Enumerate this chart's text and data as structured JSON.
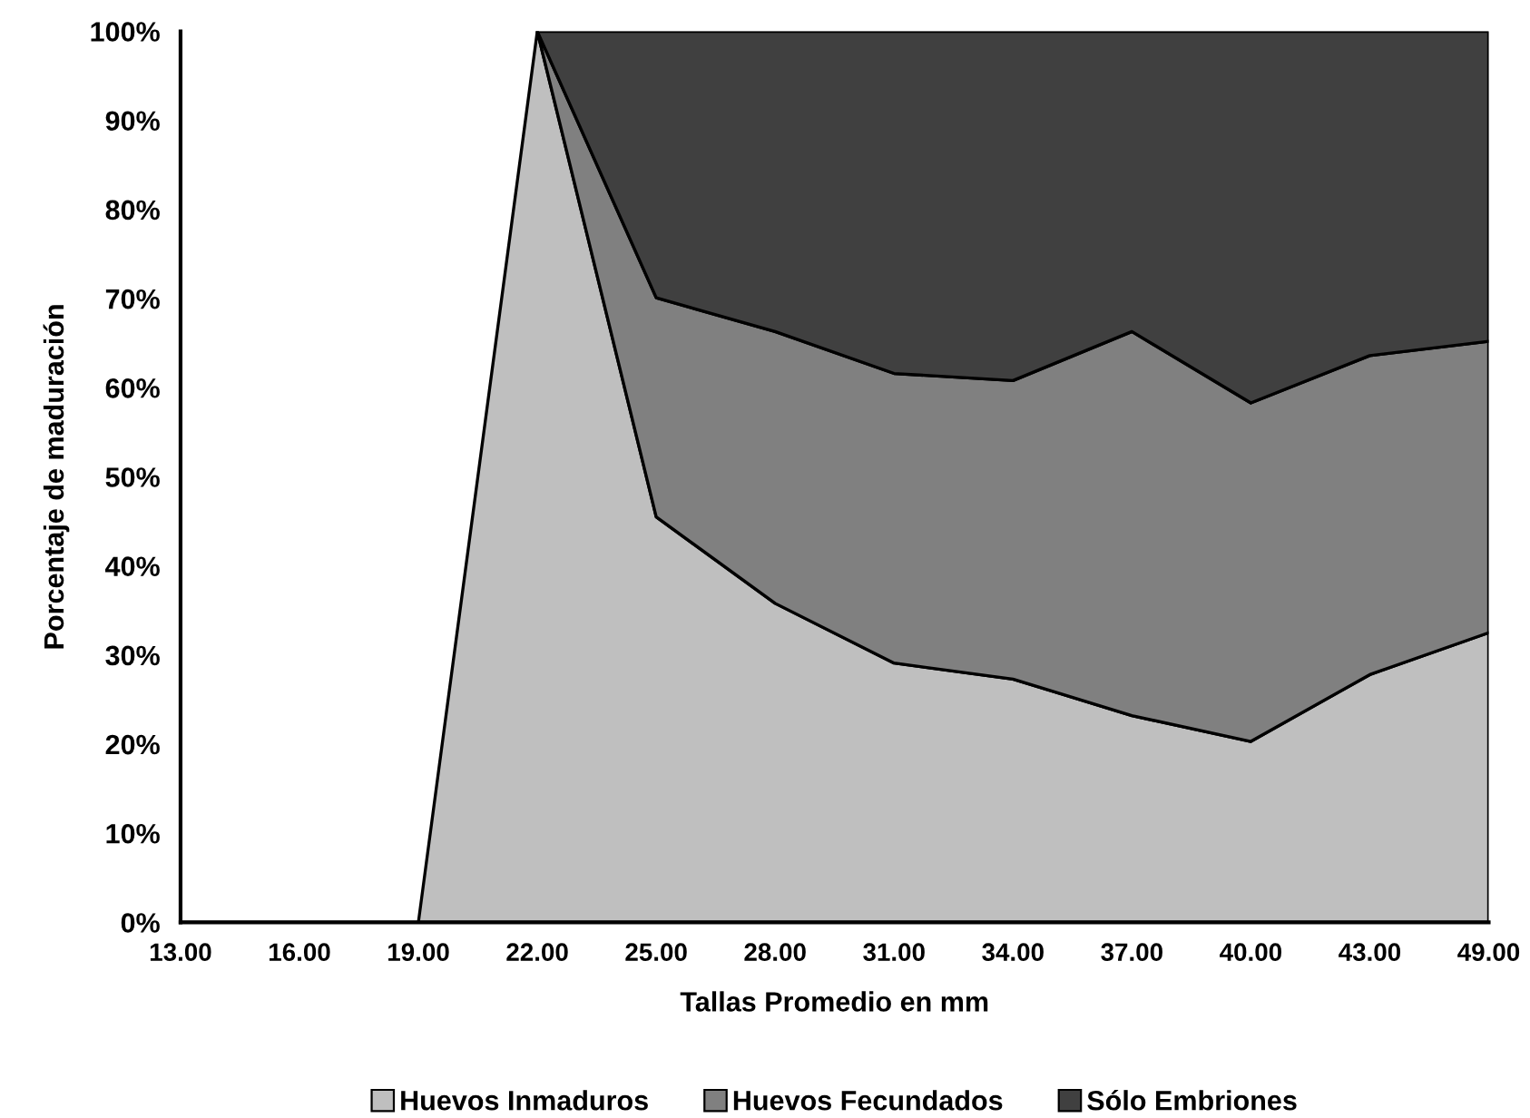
{
  "chart_data": {
    "type": "area",
    "stacked": true,
    "xlabel": "Tallas Promedio en mm",
    "ylabel": "Porcentaje de maduración",
    "categories": [
      "13.00",
      "16.00",
      "19.00",
      "22.00",
      "25.00",
      "28.00",
      "31.00",
      "34.00",
      "37.00",
      "40.00",
      "43.00",
      "49.00"
    ],
    "series": [
      {
        "name": "Huevos Inmaduros",
        "color": "#bfbfbf",
        "values": [
          0,
          0,
          0,
          100,
          45.5,
          35.8,
          29.1,
          27.3,
          23.2,
          20.3,
          27.8,
          32.5
        ]
      },
      {
        "name": "Huevos Fecundados",
        "color": "#808080",
        "values": [
          null,
          null,
          null,
          0,
          24.6,
          30.5,
          32.5,
          33.5,
          43.1,
          38.0,
          35.8,
          32.7
        ]
      },
      {
        "name": "Sólo Embriones",
        "color": "#404040",
        "values": [
          null,
          null,
          null,
          0,
          29.9,
          33.7,
          38.4,
          39.2,
          33.7,
          41.7,
          36.4,
          34.8
        ]
      }
    ],
    "ylim": [
      0,
      100
    ],
    "yticks": [
      {
        "value": 0,
        "label": "0%"
      },
      {
        "value": 10,
        "label": "10%"
      },
      {
        "value": 20,
        "label": "20%"
      },
      {
        "value": 30,
        "label": "30%"
      },
      {
        "value": 40,
        "label": "40%"
      },
      {
        "value": 50,
        "label": "50%"
      },
      {
        "value": 60,
        "label": "60%"
      },
      {
        "value": 70,
        "label": "70%"
      },
      {
        "value": 80,
        "label": "80%"
      },
      {
        "value": 90,
        "label": "90%"
      },
      {
        "value": 100,
        "label": "100%"
      }
    ],
    "grid": false,
    "legend": "bottom"
  }
}
